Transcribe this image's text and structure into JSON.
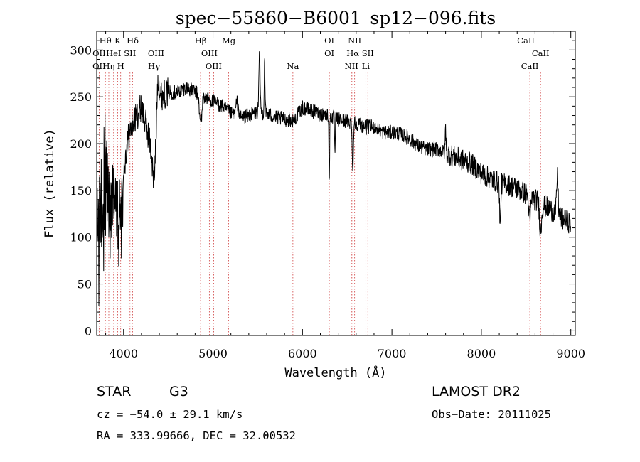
{
  "chart_data": {
    "type": "line",
    "title": "spec−55860−B6001_sp12−096.fits",
    "xlabel": "Wavelength (Å)",
    "ylabel": "Flux (relative)",
    "xlim": [
      3700,
      9050
    ],
    "ylim": [
      -5,
      320
    ],
    "xticks": [
      4000,
      5000,
      6000,
      7000,
      8000,
      9000
    ],
    "yticks": [
      0,
      50,
      100,
      150,
      200,
      250,
      300
    ],
    "grid": false,
    "legend": "none",
    "colors": {
      "spectrum": "#000000",
      "line_marker": "#d04040",
      "axes": "#000000"
    },
    "anchors": [
      [
        3700,
        150
      ],
      [
        3730,
        95
      ],
      [
        3760,
        110
      ],
      [
        3800,
        150
      ],
      [
        3850,
        130
      ],
      [
        3900,
        145
      ],
      [
        3950,
        110
      ],
      [
        4000,
        170
      ],
      [
        4050,
        205
      ],
      [
        4100,
        220
      ],
      [
        4150,
        230
      ],
      [
        4200,
        240
      ],
      [
        4300,
        200
      ],
      [
        4400,
        250
      ],
      [
        4500,
        255
      ],
      [
        4600,
        255
      ],
      [
        4700,
        260
      ],
      [
        4800,
        255
      ],
      [
        4900,
        250
      ],
      [
        5000,
        245
      ],
      [
        5100,
        240
      ],
      [
        5200,
        232
      ],
      [
        5300,
        228
      ],
      [
        5400,
        230
      ],
      [
        5500,
        234
      ],
      [
        5600,
        232
      ],
      [
        5700,
        228
      ],
      [
        5800,
        226
      ],
      [
        5900,
        225
      ],
      [
        6000,
        238
      ],
      [
        6100,
        235
      ],
      [
        6200,
        232
      ],
      [
        6300,
        230
      ],
      [
        6400,
        226
      ],
      [
        6500,
        224
      ],
      [
        6600,
        222
      ],
      [
        6700,
        218
      ],
      [
        6800,
        218
      ],
      [
        6900,
        212
      ],
      [
        7000,
        212
      ],
      [
        7100,
        210
      ],
      [
        7200,
        205
      ],
      [
        7300,
        197
      ],
      [
        7400,
        194
      ],
      [
        7500,
        194
      ],
      [
        7600,
        190
      ],
      [
        7700,
        186
      ],
      [
        7800,
        182
      ],
      [
        7900,
        178
      ],
      [
        8000,
        168
      ],
      [
        8100,
        163
      ],
      [
        8200,
        158
      ],
      [
        8300,
        156
      ],
      [
        8400,
        152
      ],
      [
        8500,
        146
      ],
      [
        8600,
        140
      ],
      [
        8700,
        134
      ],
      [
        8800,
        128
      ],
      [
        8900,
        120
      ],
      [
        9000,
        115
      ]
    ],
    "features": [
      [
        4340,
        -58,
        25
      ],
      [
        4385,
        30,
        15
      ],
      [
        4861,
        -30,
        20
      ],
      [
        5270,
        15,
        20
      ],
      [
        5520,
        60,
        10
      ],
      [
        5577,
        60,
        6
      ],
      [
        6300,
        -110,
        5
      ],
      [
        6300,
        40,
        4
      ],
      [
        6363,
        -40,
        5
      ],
      [
        6563,
        -55,
        8
      ],
      [
        7600,
        28,
        6
      ],
      [
        8210,
        -50,
        8
      ],
      [
        8540,
        -25,
        15
      ],
      [
        8662,
        -30,
        15
      ],
      [
        8850,
        40,
        12
      ]
    ],
    "lines": [
      {
        "label": "Hθ",
        "x": 3797,
        "row": 0
      },
      {
        "label": "K",
        "x": 3934,
        "row": 0
      },
      {
        "label": "Hδ",
        "x": 4102,
        "row": 0
      },
      {
        "label": "Hβ",
        "x": 4861,
        "row": 0
      },
      {
        "label": "Mg",
        "x": 5175,
        "row": 0
      },
      {
        "label": "OI",
        "x": 6300,
        "row": 0
      },
      {
        "label": "NII",
        "x": 6583,
        "row": 0
      },
      {
        "label": "CaII",
        "x": 8498,
        "row": 0
      },
      {
        "label": "OII",
        "x": 3727,
        "row": 1
      },
      {
        "label": "HeI",
        "x": 3889,
        "row": 1
      },
      {
        "label": "SII",
        "x": 4072,
        "row": 1
      },
      {
        "label": "OIII",
        "x": 4363,
        "row": 1
      },
      {
        "label": "OIII",
        "x": 4959,
        "row": 1
      },
      {
        "label": "OI",
        "x": 6300,
        "row": 1
      },
      {
        "label": "Hα",
        "x": 6563,
        "row": 1
      },
      {
        "label": "SII",
        "x": 6731,
        "row": 1
      },
      {
        "label": "CaII",
        "x": 8662,
        "row": 1
      },
      {
        "label": "OII",
        "x": 3727,
        "row": 2
      },
      {
        "label": "Hη",
        "x": 3835,
        "row": 2
      },
      {
        "label": "H",
        "x": 3968,
        "row": 2
      },
      {
        "label": "Hγ",
        "x": 4340,
        "row": 2
      },
      {
        "label": "OIII",
        "x": 5007,
        "row": 2
      },
      {
        "label": "Na",
        "x": 5893,
        "row": 2
      },
      {
        "label": "NII",
        "x": 6548,
        "row": 2
      },
      {
        "label": "Li",
        "x": 6708,
        "row": 2
      },
      {
        "label": "CaII",
        "x": 8542,
        "row": 2
      }
    ]
  },
  "info": {
    "object_class": "STAR",
    "subclass": "G3",
    "survey": "LAMOST DR2",
    "cz": "cz = −54.0 ± 29.1 km/s",
    "obs_date": "Obs−Date: 20111025",
    "coords": "RA = 333.99666, DEC =  32.00532"
  }
}
